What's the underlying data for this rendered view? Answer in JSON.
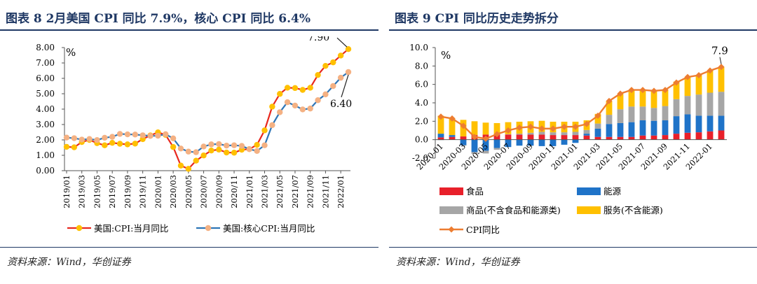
{
  "left": {
    "title": "图表 8   2月美国 CPI 同比 7.9%，核心 CPI 同比 6.4%",
    "source": "资料来源：Wind，华创证券",
    "chart_data": {
      "type": "line",
      "unit_label": "%",
      "ylim": [
        0,
        8
      ],
      "yticks": [
        "0.00",
        "1.00",
        "2.00",
        "3.00",
        "4.00",
        "5.00",
        "6.00",
        "7.00",
        "8.00"
      ],
      "categories": [
        "2019/01",
        "2019/02",
        "2019/03",
        "2019/04",
        "2019/05",
        "2019/06",
        "2019/07",
        "2019/08",
        "2019/09",
        "2019/10",
        "2019/11",
        "2019/12",
        "2020/01",
        "2020/02",
        "2020/03",
        "2020/04",
        "2020/05",
        "2020/06",
        "2020/07",
        "2020/08",
        "2020/09",
        "2020/10",
        "2020/11",
        "2020/12",
        "2021/01",
        "2021/02",
        "2021/03",
        "2021/04",
        "2021/05",
        "2021/06",
        "2021/07",
        "2021/08",
        "2021/09",
        "2021/10",
        "2021/11",
        "2021/12",
        "2022/01",
        "2022/02"
      ],
      "tick_labels": [
        "2019/01",
        "2019/03",
        "2019/05",
        "2019/07",
        "2019/09",
        "2019/11",
        "2020/01",
        "2020/03",
        "2020/05",
        "2020/07",
        "2020/09",
        "2020/11",
        "2021/01",
        "2021/03",
        "2021/05",
        "2021/07",
        "2021/09",
        "2021/11",
        "2022/01"
      ],
      "series": [
        {
          "name": "美国:CPI:当月同比",
          "color": "#e8281e",
          "marker": "#ffc000",
          "values": [
            1.55,
            1.52,
            1.86,
            2.0,
            1.79,
            1.65,
            1.81,
            1.75,
            1.71,
            1.76,
            2.05,
            2.29,
            2.49,
            2.33,
            1.54,
            0.33,
            0.12,
            0.65,
            0.99,
            1.31,
            1.37,
            1.18,
            1.17,
            1.36,
            1.4,
            1.68,
            2.62,
            4.16,
            4.99,
            5.39,
            5.37,
            5.25,
            5.39,
            6.22,
            6.81,
            7.04,
            7.48,
            7.9
          ]
        },
        {
          "name": "美国:核心CPI:当月同比",
          "color": "#2e75b6",
          "marker": "#f4b183",
          "values": [
            2.15,
            2.11,
            2.02,
            2.06,
            1.99,
            2.14,
            2.2,
            2.39,
            2.36,
            2.35,
            2.3,
            2.26,
            2.27,
            2.37,
            2.1,
            1.44,
            1.24,
            1.2,
            1.57,
            1.71,
            1.73,
            1.63,
            1.65,
            1.61,
            1.4,
            1.28,
            1.65,
            2.96,
            3.8,
            4.45,
            4.23,
            3.98,
            4.04,
            4.58,
            4.96,
            5.5,
            6.04,
            6.41
          ]
        }
      ],
      "annotations": [
        "7.90",
        "6.40"
      ]
    }
  },
  "right": {
    "title": "图表 9   CPI 同比历史走势拆分",
    "source": "资料来源：Wind，华创证券",
    "chart_data": {
      "type": "bar",
      "stacked": true,
      "unit_label": "%",
      "ylim": [
        -2,
        10
      ],
      "yticks": [
        "-2.0",
        "0.0",
        "2.0",
        "4.0",
        "6.0",
        "8.0",
        "10.0"
      ],
      "categories": [
        "2020-01",
        "2020-02",
        "2020-03",
        "2020-04",
        "2020-05",
        "2020-06",
        "2020-07",
        "2020-08",
        "2020-09",
        "2020-10",
        "2020-11",
        "2020-12",
        "2021-01",
        "2021-02",
        "2021-03",
        "2021-04",
        "2021-05",
        "2021-06",
        "2021-07",
        "2021-08",
        "2021-09",
        "2021-10",
        "2021-11",
        "2021-12",
        "2022-01",
        "2022-02"
      ],
      "tick_labels": [
        "2020-01",
        "2020-03",
        "2020-05",
        "2020-07",
        "2020-09",
        "2020-11",
        "2021-01",
        "2021-03",
        "2021-05",
        "2021-07",
        "2021-09",
        "2021-11",
        "2022-01"
      ],
      "series": [
        {
          "name": "食品",
          "color": "#e8202a",
          "values": [
            0.25,
            0.3,
            0.35,
            0.5,
            0.55,
            0.6,
            0.55,
            0.55,
            0.55,
            0.55,
            0.5,
            0.5,
            0.5,
            0.45,
            0.3,
            0.3,
            0.3,
            0.3,
            0.45,
            0.45,
            0.5,
            0.65,
            0.75,
            0.8,
            0.9,
            1.0
          ]
        },
        {
          "name": "能源",
          "color": "#1f73c8",
          "values": [
            0.4,
            0.2,
            -0.6,
            -1.35,
            -1.2,
            -0.9,
            -0.8,
            -0.65,
            -0.65,
            -0.7,
            -0.7,
            -0.55,
            -0.35,
            0.2,
            0.9,
            1.4,
            1.5,
            1.6,
            1.65,
            1.6,
            1.6,
            1.9,
            2.0,
            1.8,
            1.7,
            1.6
          ]
        },
        {
          "name": "商品(不含食品和能源类)",
          "color": "#a6a6a6",
          "values": [
            -0.05,
            0.0,
            -0.05,
            -0.2,
            -0.3,
            -0.2,
            0.05,
            0.1,
            0.2,
            0.3,
            0.3,
            0.3,
            0.35,
            0.4,
            0.55,
            1.0,
            1.5,
            1.7,
            1.5,
            1.4,
            1.55,
            1.85,
            2.0,
            2.3,
            2.5,
            2.6
          ]
        },
        {
          "name": "服务(不含能源)",
          "color": "#ffc000",
          "values": [
            1.95,
            1.85,
            1.8,
            1.5,
            1.3,
            1.2,
            1.3,
            1.3,
            1.25,
            1.2,
            1.15,
            1.15,
            1.1,
            1.05,
            1.05,
            1.5,
            1.65,
            1.8,
            1.75,
            1.8,
            1.8,
            1.9,
            2.05,
            2.1,
            2.4,
            2.7
          ]
        }
      ],
      "line": {
        "name": "CPI同比",
        "color": "#ed7d31",
        "values": [
          2.5,
          2.3,
          1.5,
          0.3,
          0.1,
          0.6,
          1.0,
          1.3,
          1.4,
          1.2,
          1.2,
          1.4,
          1.4,
          1.7,
          2.6,
          4.2,
          5.0,
          5.4,
          5.4,
          5.3,
          5.4,
          6.2,
          6.8,
          7.0,
          7.5,
          7.9
        ]
      },
      "annotations": [
        "7.9"
      ]
    }
  }
}
